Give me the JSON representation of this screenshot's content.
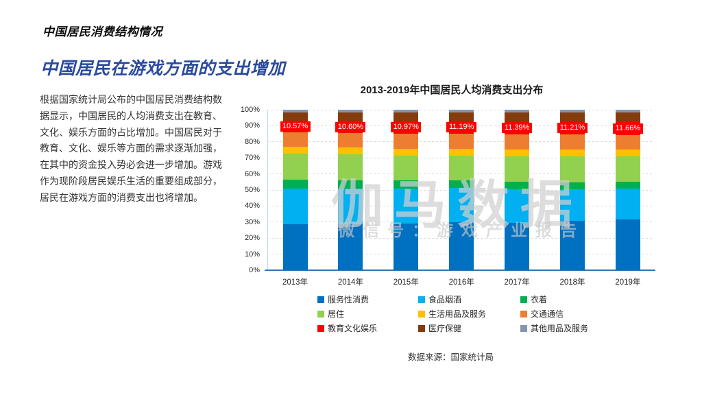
{
  "page": {
    "eyebrow": "中国居民消费结构情况",
    "title": "中国居民在游戏方面的支出增加",
    "paragraph": "根据国家统计局公布的中国居民消费结构数据显示，中国居民的人均消费支出在教育、文化、娱乐方面的占比增加。中国居民对于教育、文化、娱乐等方面的需求逐渐加强，在其中的资金投入势必会进一步增加。游戏作为现阶段居民娱乐生活的重要组成部分，居民在游戏方面的消费支出也将增加。",
    "source": "数据来源：国家统计局"
  },
  "watermark": {
    "line1": "伽马数据",
    "line2": "微信号：游戏产业报告"
  },
  "colors": {
    "title_blue": "#2a4a9d",
    "axis_baseline": "#2e75b6",
    "gridline": "#d9d9d9",
    "label_background": "#ff0000",
    "label_text": "#ffffff",
    "watermark_gray": "#d0d0d0"
  },
  "chart_data": {
    "type": "bar",
    "stacked": true,
    "normalized_to_100_percent": true,
    "title": "2013-2019年中国居民人均消费支出分布",
    "categories": [
      "2013年",
      "2014年",
      "2015年",
      "2016年",
      "2017年",
      "2018年",
      "2019年"
    ],
    "y_ticks": [
      "0%",
      "10%",
      "20%",
      "30%",
      "40%",
      "50%",
      "60%",
      "70%",
      "80%",
      "90%",
      "100%"
    ],
    "ylim": [
      0,
      100
    ],
    "grid": "dashed-horizontal",
    "legend_position": "bottom",
    "series": [
      {
        "name": "服务性消费",
        "color": "#0070C0",
        "values": [
          39.9,
          40.0,
          40.8,
          43.0,
          42.0,
          44.2,
          45.9
        ]
      },
      {
        "name": "食品烟酒",
        "color": "#00B0F0",
        "values": [
          31.2,
          31.0,
          30.6,
          30.1,
          29.3,
          28.4,
          28.2
        ]
      },
      {
        "name": "衣着",
        "color": "#00B050",
        "values": [
          7.8,
          7.6,
          7.4,
          7.0,
          6.8,
          6.5,
          6.2
        ]
      },
      {
        "name": "居住",
        "color": "#92D050",
        "values": [
          22.7,
          22.7,
          21.8,
          21.9,
          22.4,
          23.4,
          23.3
        ]
      },
      {
        "name": "生活用品及服务",
        "color": "#FFC000",
        "values": [
          6.1,
          6.1,
          6.1,
          6.0,
          5.9,
          6.2,
          5.9
        ]
      },
      {
        "name": "交通通信",
        "color": "#ED7D31",
        "values": [
          12.3,
          12.3,
          13.3,
          13.7,
          13.6,
          13.5,
          13.3
        ]
      },
      {
        "name": "教育文化娱乐",
        "color": "#FF0000",
        "values": [
          10.57,
          10.6,
          10.97,
          11.19,
          11.39,
          11.21,
          11.66
        ],
        "labels": [
          "10.57%",
          "10.60%",
          "10.97%",
          "11.19%",
          "11.39%",
          "11.21%",
          "11.66%"
        ]
      },
      {
        "name": "医疗保健",
        "color": "#843C0C",
        "values": [
          6.9,
          7.2,
          7.4,
          7.6,
          7.9,
          8.5,
          8.8
        ]
      },
      {
        "name": "其他用品及服务",
        "color": "#8496B0",
        "values": [
          2.5,
          2.5,
          2.5,
          2.4,
          2.4,
          2.4,
          2.4
        ]
      }
    ]
  }
}
